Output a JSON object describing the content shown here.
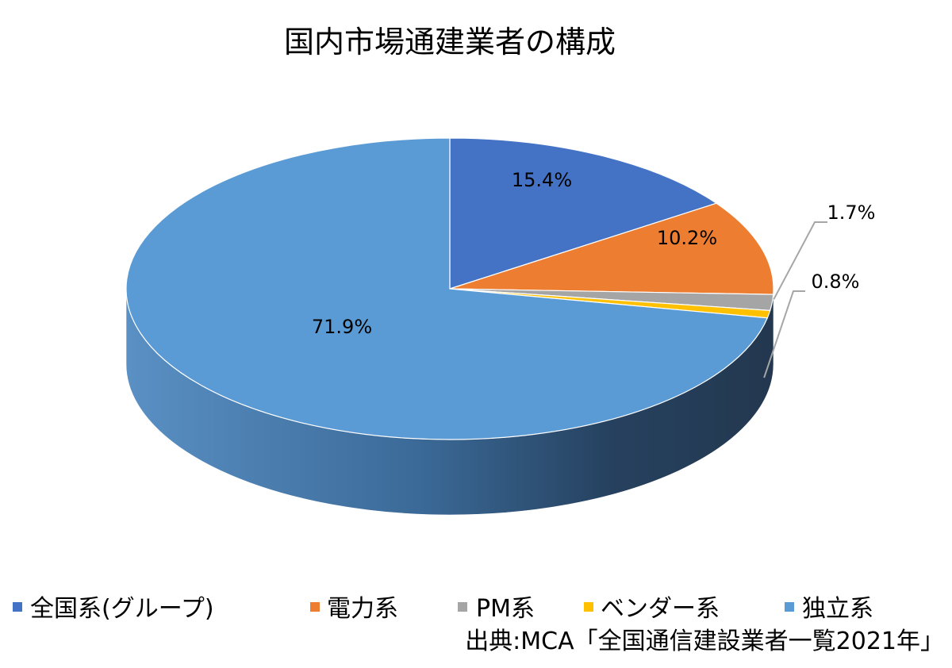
{
  "chart_data": {
    "type": "pie",
    "title": "国内市場通建業者の構成",
    "categories": [
      "全国系(グループ)",
      "電力系",
      "PM系",
      "ベンダー系",
      "独立系"
    ],
    "values": [
      15.4,
      10.2,
      1.7,
      0.8,
      71.9
    ],
    "data_labels": [
      "15.4%",
      "10.2%",
      "1.7%",
      "0.8%",
      "71.9%"
    ],
    "colors": [
      "#4472C4",
      "#ED7D31",
      "#A5A5A5",
      "#FFC000",
      "#5B9BD5"
    ],
    "legend_position": "bottom",
    "style": "3d"
  },
  "source": "出典:MCA「全国通信建設業者一覧2021年」"
}
